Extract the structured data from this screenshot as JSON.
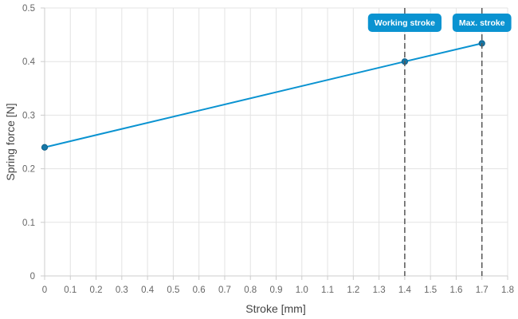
{
  "chart_data": {
    "type": "line",
    "xlabel": "Stroke [mm]",
    "ylabel": "Spring force [N]",
    "xlim": [
      0,
      1.8
    ],
    "ylim": [
      0,
      0.5
    ],
    "x_ticks": [
      "0",
      "0.1",
      "0.2",
      "0.3",
      "0.4",
      "0.5",
      "0.6",
      "0.7",
      "0.8",
      "0.9",
      "1.0",
      "1.1",
      "1.2",
      "1.3",
      "1.4",
      "1.5",
      "1.6",
      "1.7",
      "1.8"
    ],
    "y_ticks": [
      "0",
      "0.1",
      "0.2",
      "0.3",
      "0.4",
      "0.5"
    ],
    "grid": true,
    "series": [
      {
        "x": [
          0,
          1.4,
          1.7
        ],
        "y": [
          0.24,
          0.4,
          0.434
        ]
      }
    ],
    "markers": [
      {
        "label": "Working stroke",
        "x": 1.4
      },
      {
        "label": "Max. stroke",
        "x": 1.7
      }
    ],
    "colors": {
      "line": "#0a93d1",
      "point": "#1678a8",
      "badge": "#0a93d1",
      "marker_line": "#555555",
      "grid": "#e3e3e3"
    }
  }
}
